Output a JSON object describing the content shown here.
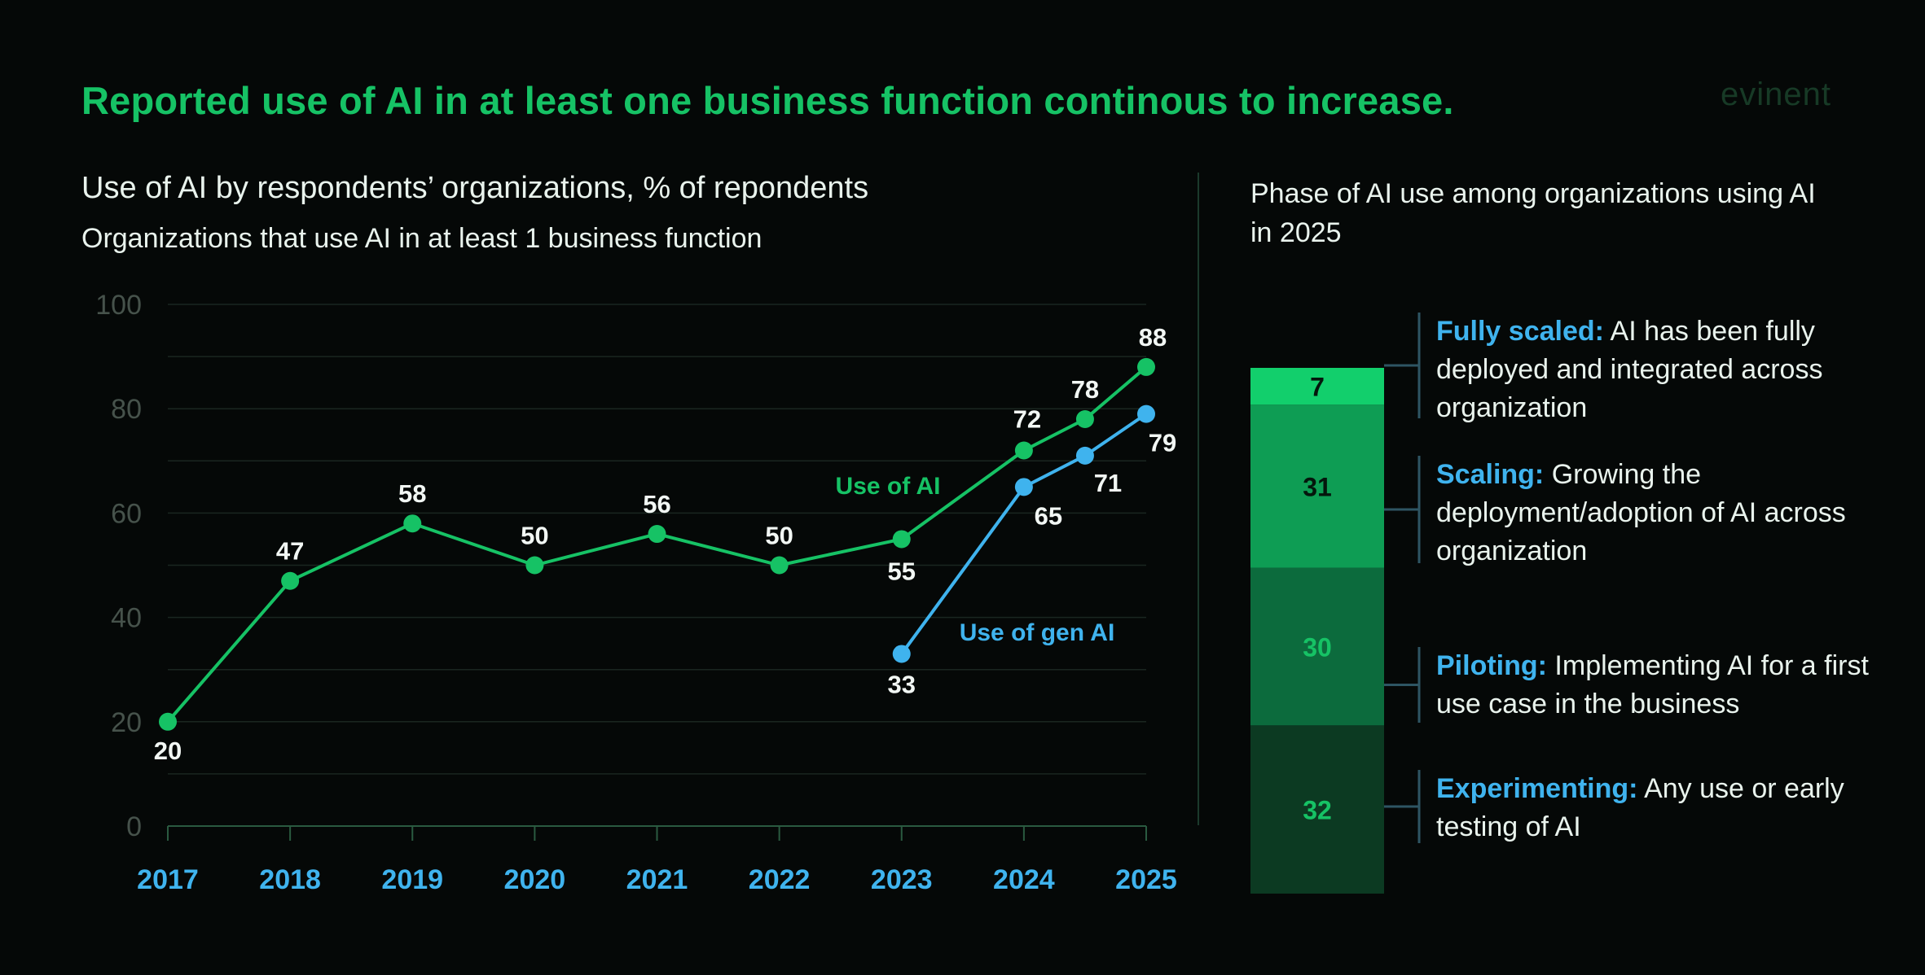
{
  "header": {
    "title": "Reported use of AI in at least one business function continous to increase.",
    "logo": "evinent"
  },
  "colors": {
    "accent": "#16c265",
    "gen_ai": "#3fb3ee",
    "background": "#050807"
  },
  "chart_data": [
    {
      "type": "line",
      "title": "Use of AI by respondents’ organizations, % of repondents",
      "subtitle": "Organizations that use AI in at least 1 business function",
      "xlabel": "",
      "ylabel": "",
      "ylim": [
        0,
        100
      ],
      "yticks": [
        "0",
        "20",
        "40",
        "60",
        "80",
        "100"
      ],
      "categories": [
        "2017",
        "2018",
        "2019",
        "2020",
        "2021",
        "2022",
        "2023",
        "2024",
        "2025"
      ],
      "grid": true,
      "series": [
        {
          "name": "Use of AI",
          "color": "#16c265",
          "x": [
            2017,
            2018,
            2019,
            2020,
            2021,
            2022,
            2023,
            2024,
            2024.5,
            2025
          ],
          "y": [
            20,
            47,
            58,
            50,
            56,
            50,
            55,
            72,
            78,
            88
          ],
          "labels": [
            "20",
            "47",
            "58",
            "50",
            "56",
            "50",
            "55",
            "72",
            "78",
            "88"
          ]
        },
        {
          "name": "Use of gen AI",
          "color": "#3fb3ee",
          "x": [
            2023,
            2024,
            2024.5,
            2025
          ],
          "y": [
            33,
            65,
            71,
            79
          ],
          "labels": [
            "33",
            "65",
            "71",
            "79"
          ]
        }
      ]
    },
    {
      "type": "bar",
      "stacked": true,
      "title": "Phase of AI use among organizations using AI in 2025",
      "segments": [
        {
          "name": "Experimenting",
          "value": 32,
          "label": "32",
          "color": "#0c3a22",
          "text_color": "#16c265",
          "description": "Any use or early testing of AI"
        },
        {
          "name": "Piloting",
          "value": 30,
          "label": "30",
          "color": "#0c6b3d",
          "text_color": "#16c265",
          "description": "Implementing AI for a first use case in the business"
        },
        {
          "name": "Scaling",
          "value": 31,
          "label": "31",
          "color": "#0e9d54",
          "text_color": "#04160c",
          "description": "Growing the deployment/adoption of AI across organization"
        },
        {
          "name": "Fully scaled",
          "value": 7,
          "label": "7",
          "color": "#12cf6c",
          "text_color": "#04160c",
          "description": "AI has been fully deployed and integrated across organization"
        }
      ]
    }
  ],
  "phases": [
    {
      "name": "Fully scaled:",
      "desc": "AI has been fully deployed and integrated across organization"
    },
    {
      "name": "Scaling:",
      "desc": "Growing the deployment/adoption of AI across organization"
    },
    {
      "name": "Piloting:",
      "desc": "Implementing AI for a first use case in the business"
    },
    {
      "name": "Experimenting:",
      "desc": "Any use or early testing of AI"
    }
  ]
}
